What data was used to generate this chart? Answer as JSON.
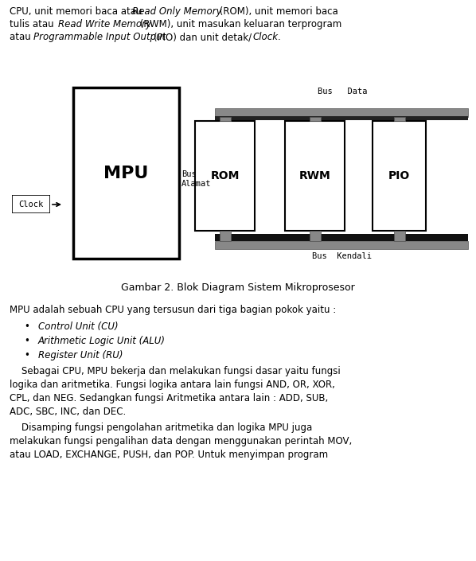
{
  "bg_color": "#ffffff",
  "fig_width": 5.98,
  "fig_height": 7.05,
  "dpi": 100,
  "caption": "Gambar 2. Blok Diagram Sistem Mikroprosesor",
  "bus_data_label": "Bus   Data",
  "bus_alamat_label": "Bus\nAlamat",
  "bus_kendali_label": "Bus  Kendali",
  "mpu_label": "MPU",
  "rom_label": "ROM",
  "rwm_label": "RWM",
  "pio_label": "PIO",
  "clock_label": "Clock"
}
